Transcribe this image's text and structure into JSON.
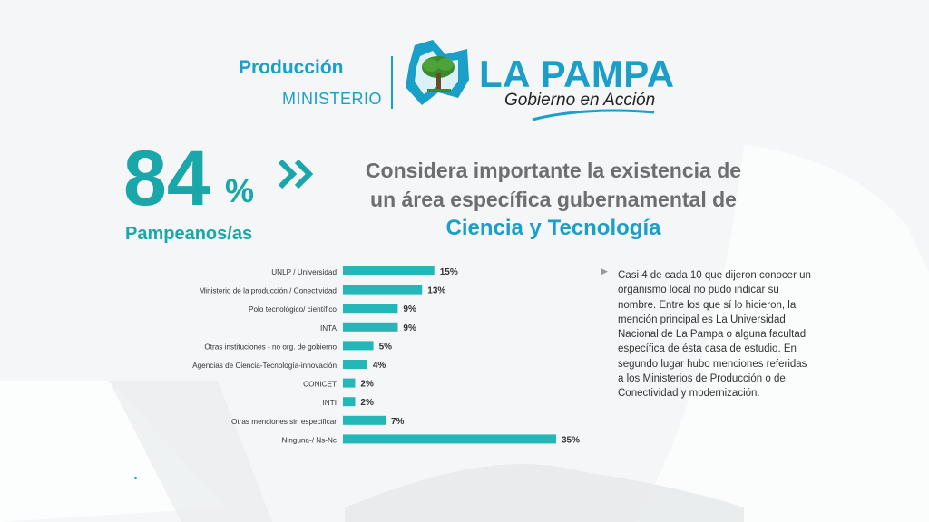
{
  "header": {
    "ministry_title": "Producción",
    "ministry_sub": "MINISTERIO",
    "brand_name": "LA PAMPA",
    "brand_tagline": "Gobierno en Acción",
    "colors": {
      "brand": "#1a9fc9",
      "accent": "#1aa7a9",
      "logo_green": "#3a8a2e"
    }
  },
  "highlight": {
    "value": "84",
    "sign": "%",
    "label": "Pampeanos/as",
    "icon": "double-chevron-right-icon",
    "line1": "Considera importante la existencia de",
    "line2": "un área específica gubernamental de",
    "line3": "Ciencia y Tecnología"
  },
  "note": {
    "icon": "triangle-bullet-icon",
    "text": "Casi 4 de cada 10 que dijeron conocer un organismo local no pudo indicar su nombre. Entre los que sí lo hicieron, la mención principal es La Universidad Nacional de La Pampa o alguna facultad específica de ésta casa de estudio. En segundo lugar hubo menciones referidas a los Ministerios de Producción o de Conectividad y modernización."
  },
  "chart_data": {
    "type": "bar",
    "orientation": "horizontal",
    "categories": [
      "UNLP / Universidad",
      "Ministerio de la producción / Conectividad",
      "Polo tecnológico/ científico",
      "INTA",
      "Otras instituciones - no org. de gobierno",
      "Agencias de Ciencia-Tecnología-innovación",
      "CONICET",
      "INTI",
      "Otras menciones sin especificar",
      "Ninguna-/ Ns-Nc"
    ],
    "values": [
      15,
      13,
      9,
      9,
      5,
      4,
      2,
      2,
      7,
      35
    ],
    "labels": [
      "15%",
      "13%",
      "9%",
      "9%",
      "5%",
      "4%",
      "2%",
      "2%",
      "7%",
      "35%"
    ],
    "bar_color": "#25b6b8",
    "xlim": [
      0,
      35
    ],
    "grid": false
  }
}
